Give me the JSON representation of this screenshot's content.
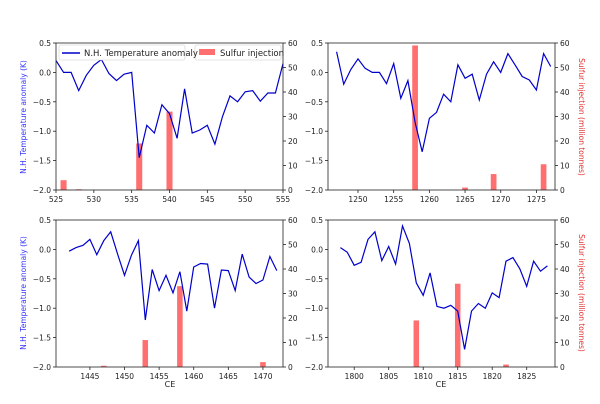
{
  "chart_data": {
    "type": "bar+line",
    "legend": {
      "placement": "top",
      "line_label": "N.H. Temperature anomaly",
      "bar_label": "Sulfur injection"
    },
    "colors": {
      "line": "#0000cc",
      "bar": "#ff6f6f",
      "left_label": "#3333ff",
      "right_label": "#e03030"
    },
    "ylabel_left": "N.H. Temperature anomaly (K)",
    "ylabel_right": "Sulfur injection (million tonnes)",
    "xlabel": "CE",
    "ylim_left": [
      -2.0,
      0.5
    ],
    "ylim_right": [
      0,
      60
    ],
    "yticks_left": [
      "-2.0",
      "-1.5",
      "-1.0",
      "-0.5",
      "0.0",
      "0.5"
    ],
    "yticks_right": [
      "0",
      "10",
      "20",
      "30",
      "40",
      "50",
      "60"
    ],
    "panels": [
      {
        "xlim": [
          525,
          555
        ],
        "xticks": [
          "525",
          "530",
          "535",
          "540",
          "545",
          "550",
          "555"
        ],
        "x_start": 525,
        "temperature": [
          0.2,
          0.0,
          0.0,
          -0.31,
          -0.05,
          0.12,
          0.22,
          -0.02,
          -0.14,
          -0.03,
          0.0,
          -1.45,
          -0.9,
          -1.03,
          -0.55,
          -0.7,
          -1.12,
          -0.28,
          -1.03,
          -0.98,
          -0.9,
          -1.22,
          -0.75,
          -0.4,
          -0.5,
          -0.33,
          -0.31,
          -0.49,
          -0.35,
          -0.35,
          0.15
        ],
        "sulfur": [
          {
            "year": 526,
            "value": 4
          },
          {
            "year": 528,
            "value": 0.3
          },
          {
            "year": 536,
            "value": 19
          },
          {
            "year": 540,
            "value": 32
          }
        ]
      },
      {
        "xlim": [
          1245.8,
          1277.6
        ],
        "xticks": [
          "1250",
          "1255",
          "1260",
          "1265",
          "1270",
          "1275"
        ],
        "x_start": 1247,
        "temperature": [
          0.35,
          -0.2,
          0.05,
          0.23,
          0.07,
          0.0,
          0.0,
          -0.19,
          0.15,
          -0.44,
          -0.14,
          -0.85,
          -1.35,
          -0.78,
          -0.68,
          -0.37,
          -0.5,
          0.13,
          -0.1,
          -0.03,
          -0.47,
          -0.03,
          0.18,
          0.0,
          0.32,
          0.13,
          -0.07,
          -0.13,
          -0.3,
          0.32,
          0.1
        ],
        "sulfur": [
          {
            "year": 1258,
            "value": 59
          },
          {
            "year": 1265,
            "value": 1
          },
          {
            "year": 1269,
            "value": 6.5
          },
          {
            "year": 1276,
            "value": 10.5
          }
        ]
      },
      {
        "xlim": [
          1440.1,
          1472.9
        ],
        "xticks": [
          "1445",
          "1450",
          "1455",
          "1460",
          "1465",
          "1470"
        ],
        "x_start": 1442,
        "temperature": [
          -0.03,
          0.03,
          0.07,
          0.17,
          -0.09,
          0.15,
          0.3,
          -0.08,
          -0.44,
          -0.1,
          0.15,
          -1.2,
          -0.34,
          -0.7,
          -0.44,
          -0.74,
          -0.38,
          -1.05,
          -0.3,
          -0.24,
          -0.25,
          -1.0,
          -0.35,
          -0.36,
          -0.7,
          -0.08,
          -0.47,
          -0.58,
          -0.52,
          -0.12,
          -0.36
        ],
        "sulfur": [
          {
            "year": 1447,
            "value": 0.5
          },
          {
            "year": 1453,
            "value": 11
          },
          {
            "year": 1458,
            "value": 33
          },
          {
            "year": 1470,
            "value": 2
          }
        ]
      },
      {
        "xlim": [
          1796.2,
          1829.1
        ],
        "xticks": [
          "1800",
          "1805",
          "1810",
          "1815",
          "1820",
          "1825"
        ],
        "x_start": 1798,
        "temperature": [
          0.03,
          -0.05,
          -0.27,
          -0.22,
          0.17,
          0.3,
          -0.19,
          0.05,
          -0.25,
          0.4,
          0.1,
          -0.57,
          -0.78,
          -0.4,
          -0.97,
          -1.0,
          -0.95,
          -1.05,
          -1.7,
          -1.05,
          -0.92,
          -1.0,
          -0.74,
          -0.82,
          -0.2,
          -0.14,
          -0.33,
          -0.63,
          -0.2,
          -0.37,
          -0.28
        ],
        "sulfur": [
          {
            "year": 1809,
            "value": 19
          },
          {
            "year": 1815,
            "value": 34
          },
          {
            "year": 1822,
            "value": 1
          }
        ]
      }
    ]
  }
}
